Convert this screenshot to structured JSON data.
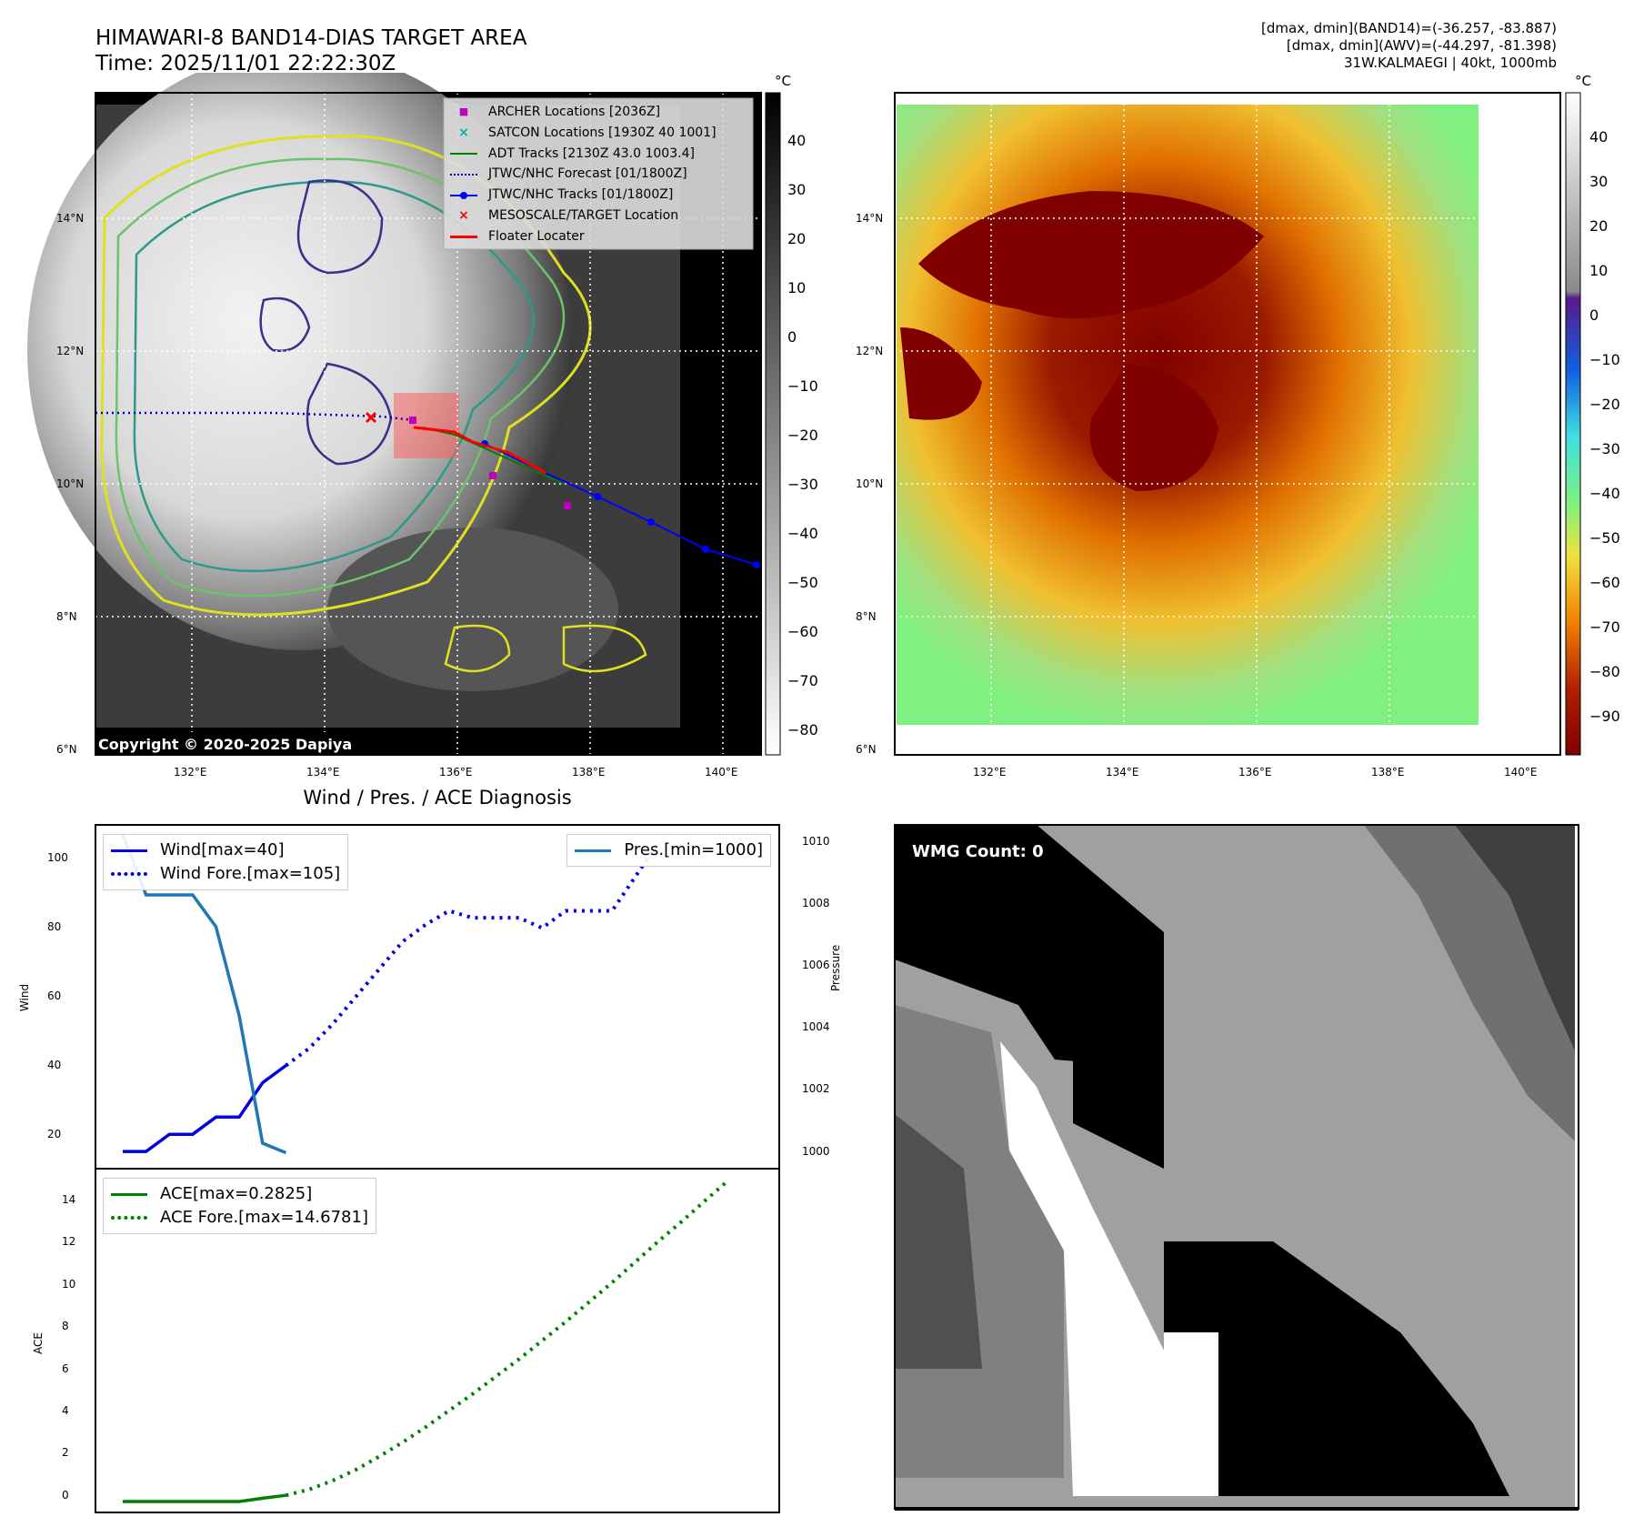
{
  "header": {
    "title_line1": "HIMAWARI-8 BAND14-DIAS TARGET AREA",
    "title_line2": "Time: 2025/11/01 22:22:30Z",
    "info_line1": "[dmax, dmin](BAND14)=(-36.257, -83.887)",
    "info_line2": "[dmax, dmin](AWV)=(-44.297, -81.398)",
    "info_line3": "31W.KALMAEGI | 40kt, 1000mb"
  },
  "map_axes": {
    "lat_labels": [
      "14°N",
      "12°N",
      "10°N",
      "8°N",
      "6°N"
    ],
    "lon_labels": [
      "132°E",
      "134°E",
      "136°E",
      "138°E",
      "140°E"
    ]
  },
  "left_map": {
    "copyright": "Copyright © 2020-2025 Dapiya",
    "legend": [
      {
        "label": "ARCHER Locations [2036Z]",
        "color": "#c000c0",
        "marker": "square"
      },
      {
        "label": "SATCON Locations [1930Z 40 1001]",
        "color": "#00b0b0",
        "marker": "x"
      },
      {
        "label": "ADT Tracks [2130Z 43.0 1003.4]",
        "color": "#008000",
        "marker": "line"
      },
      {
        "label": "JTWC/NHC Forecast [01/1800Z]",
        "color": "#0000cc",
        "marker": "dotted"
      },
      {
        "label": "JTWC/NHC Tracks [01/1800Z]",
        "color": "#0000ff",
        "marker": "line-dot"
      },
      {
        "label": "MESOSCALE/TARGET Location",
        "color": "#ff0000",
        "marker": "x"
      },
      {
        "label": "Floater Locater",
        "color": "#ff0000",
        "marker": "line"
      }
    ],
    "colorbar": {
      "unit": "°C",
      "ticks": [
        "40",
        "30",
        "20",
        "10",
        "0",
        "−10",
        "−20",
        "−30",
        "−40",
        "−50",
        "−60",
        "−70",
        "−80"
      ]
    }
  },
  "right_map": {
    "colorbar": {
      "unit": "°C",
      "ticks": [
        "40",
        "30",
        "20",
        "10",
        "0",
        "−10",
        "−20",
        "−30",
        "−40",
        "−50",
        "−60",
        "−70",
        "−80",
        "−90"
      ]
    }
  },
  "diagnosis": {
    "title": "Wind / Pres. / ACE Diagnosis",
    "wind_ylabel": "Wind",
    "pres_ylabel": "Pressure",
    "ace_ylabel": "ACE",
    "legend_wind": "Wind[max=40]",
    "legend_wind_fore": "Wind Fore.[max=105]",
    "legend_pres": "Pres.[min=1000]",
    "legend_ace": "ACE[max=0.2825]",
    "legend_ace_fore": "ACE Fore.[max=14.6781]",
    "wind_ticks": [
      "100",
      "80",
      "60",
      "40",
      "20"
    ],
    "pres_ticks": [
      "1010",
      "1008",
      "1006",
      "1004",
      "1002",
      "1000"
    ],
    "ace_ticks": [
      "14",
      "12",
      "10",
      "8",
      "6",
      "4",
      "2",
      "0"
    ]
  },
  "wmg": {
    "label": "WMG Count: 0"
  },
  "chart_data": [
    {
      "type": "line",
      "series": [
        {
          "name": "Wind[max=40]",
          "x": [
            0,
            1,
            2,
            3,
            4,
            5,
            6,
            7
          ],
          "values": [
            15,
            15,
            20,
            20,
            25,
            25,
            35,
            40
          ]
        },
        {
          "name": "Wind Fore.[max=105]",
          "x": [
            7,
            8,
            9,
            10,
            11,
            12,
            13,
            14,
            15,
            16,
            17,
            18,
            19,
            20,
            21,
            22,
            23
          ],
          "values": [
            40,
            45,
            52,
            60,
            68,
            76,
            81,
            85,
            83,
            83,
            83,
            80,
            85,
            85,
            85,
            95,
            105
          ]
        }
      ],
      "ylabel": "Wind",
      "ylim": [
        10,
        110
      ]
    },
    {
      "type": "line",
      "series": [
        {
          "name": "Pres.[min=1000]",
          "x": [
            0,
            1,
            2,
            3,
            4,
            5,
            6,
            7
          ],
          "values": [
            1010,
            1008.1,
            1008.1,
            1008.1,
            1007.1,
            1004.3,
            1000.3,
            1000
          ]
        }
      ],
      "ylabel": "Pressure",
      "ylim": [
        999.5,
        1010.3
      ]
    },
    {
      "type": "line",
      "series": [
        {
          "name": "ACE[max=0.2825]",
          "x": [
            0,
            1,
            2,
            3,
            4,
            5,
            6,
            7
          ],
          "values": [
            0,
            0,
            0,
            0,
            0,
            0,
            0.15,
            0.2825
          ]
        },
        {
          "name": "ACE Fore.[max=14.6781]",
          "x": [
            7,
            8,
            9,
            10,
            11,
            12,
            13,
            14,
            15,
            16,
            17,
            18,
            19,
            20,
            21,
            22,
            23,
            24,
            25,
            26
          ],
          "values": [
            0.28,
            0.55,
            0.95,
            1.45,
            2.05,
            2.7,
            3.4,
            4.15,
            4.9,
            5.7,
            6.5,
            7.35,
            8.2,
            9.1,
            10.0,
            10.95,
            11.9,
            12.8,
            13.75,
            14.6781
          ]
        }
      ],
      "ylabel": "ACE",
      "ylim": [
        -0.5,
        15.2
      ]
    }
  ]
}
